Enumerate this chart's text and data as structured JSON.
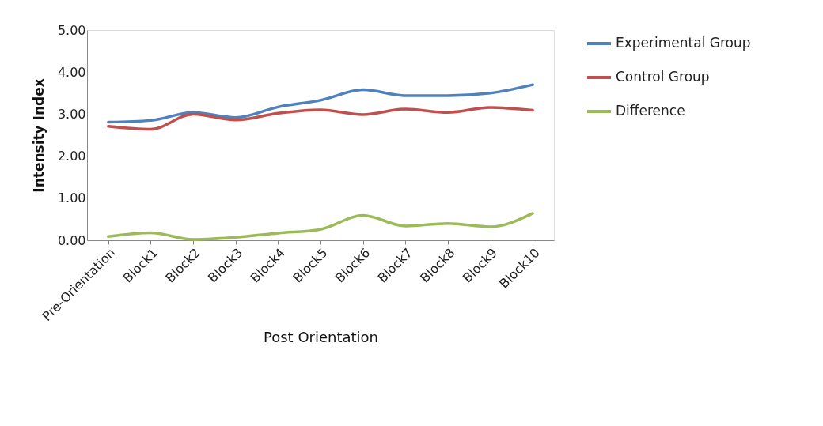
{
  "chart_data": {
    "type": "line",
    "xlabel": "Post Orientation",
    "ylabel": "Intensity  Index",
    "categories": [
      "Pre-Orientation",
      "Block1",
      "Block2",
      "Block3",
      "Block4",
      "Block5",
      "Block6",
      "Block7",
      "Block8",
      "Block9",
      "Block10"
    ],
    "series": [
      {
        "name": "Experimental Group",
        "color": "#4f81bd",
        "values": [
          2.81,
          2.85,
          3.04,
          2.92,
          3.17,
          3.33,
          3.58,
          3.44,
          3.44,
          3.5,
          3.7
        ]
      },
      {
        "name": "Control Group",
        "color": "#c0504d",
        "values": [
          2.71,
          2.64,
          3.0,
          2.86,
          3.02,
          3.1,
          2.99,
          3.12,
          3.04,
          3.16,
          3.09
        ]
      },
      {
        "name": "Difference",
        "color": "#9bbb59",
        "values": [
          0.09,
          0.18,
          0.02,
          0.07,
          0.17,
          0.26,
          0.59,
          0.34,
          0.4,
          0.32,
          0.64
        ]
      }
    ],
    "ylim": [
      0,
      5
    ],
    "yticks": [
      {
        "value": 0,
        "label": "0.00"
      },
      {
        "value": 1,
        "label": "1.00"
      },
      {
        "value": 2,
        "label": "2.00"
      },
      {
        "value": 3,
        "label": "3.00"
      },
      {
        "value": 4,
        "label": "4.00"
      },
      {
        "value": 5,
        "label": "5.00"
      }
    ],
    "grid": false,
    "legend": "right",
    "marker": "none",
    "line_style": "solid"
  }
}
